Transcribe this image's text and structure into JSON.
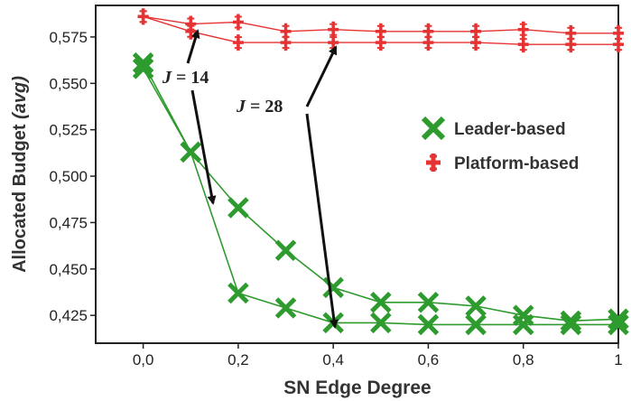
{
  "chart_data": {
    "type": "line",
    "xlabel": "SN Edge Degree",
    "ylabel": "Allocated Budget",
    "ylabel_suffix": "(avg)",
    "xlim": [
      -0.1,
      1.0
    ],
    "ylim": [
      0.41,
      0.592
    ],
    "x_ticks": [
      0.0,
      0.2,
      0.4,
      0.6,
      0.8,
      1.0
    ],
    "x_tick_labels": [
      "0,0",
      "0,2",
      "0,4",
      "0,6",
      "0,8",
      "1"
    ],
    "y_ticks": [
      0.425,
      0.45,
      0.475,
      0.5,
      0.525,
      0.55,
      0.575
    ],
    "y_tick_labels": [
      "0,425",
      "0,450",
      "0,475",
      "0,500",
      "0,525",
      "0,550",
      "0,575"
    ],
    "legend_position": "right",
    "grid": false,
    "annotations": [
      {
        "label": "J = 14",
        "var": "J",
        "rest": " = 14"
      },
      {
        "label": "J = 28",
        "var": "J",
        "rest": " = 28"
      }
    ],
    "series": [
      {
        "name": "Leader-based",
        "color": "#2e9b2e",
        "marker": "x",
        "lines": [
          {
            "x": [
              0.0,
              0.1,
              0.2,
              0.3,
              0.4,
              0.5,
              0.6,
              0.7,
              0.8,
              0.9,
              1.0
            ],
            "y": [
              0.561,
              0.513,
              0.483,
              0.46,
              0.44,
              0.432,
              0.432,
              0.43,
              0.425,
              0.422,
              0.423
            ]
          },
          {
            "x": [
              0.0,
              0.1,
              0.2,
              0.3,
              0.4,
              0.5,
              0.6,
              0.7,
              0.8,
              0.9,
              1.0
            ],
            "y": [
              0.558,
              0.513,
              0.437,
              0.429,
              0.421,
              0.421,
              0.42,
              0.42,
              0.42,
              0.42,
              0.42
            ]
          }
        ]
      },
      {
        "name": "Platform-based",
        "color": "#e53333",
        "marker": "+",
        "lines": [
          {
            "x": [
              0.0,
              0.1,
              0.2,
              0.3,
              0.4,
              0.5,
              0.6,
              0.7,
              0.8,
              0.9,
              1.0
            ],
            "y": [
              0.586,
              0.582,
              0.583,
              0.578,
              0.579,
              0.578,
              0.578,
              0.578,
              0.579,
              0.577,
              0.577
            ]
          },
          {
            "x": [
              0.0,
              0.1,
              0.2,
              0.3,
              0.4,
              0.5,
              0.6,
              0.7,
              0.8,
              0.9,
              1.0
            ],
            "y": [
              0.586,
              0.578,
              0.572,
              0.572,
              0.572,
              0.572,
              0.572,
              0.572,
              0.571,
              0.571,
              0.571
            ]
          }
        ]
      }
    ]
  }
}
